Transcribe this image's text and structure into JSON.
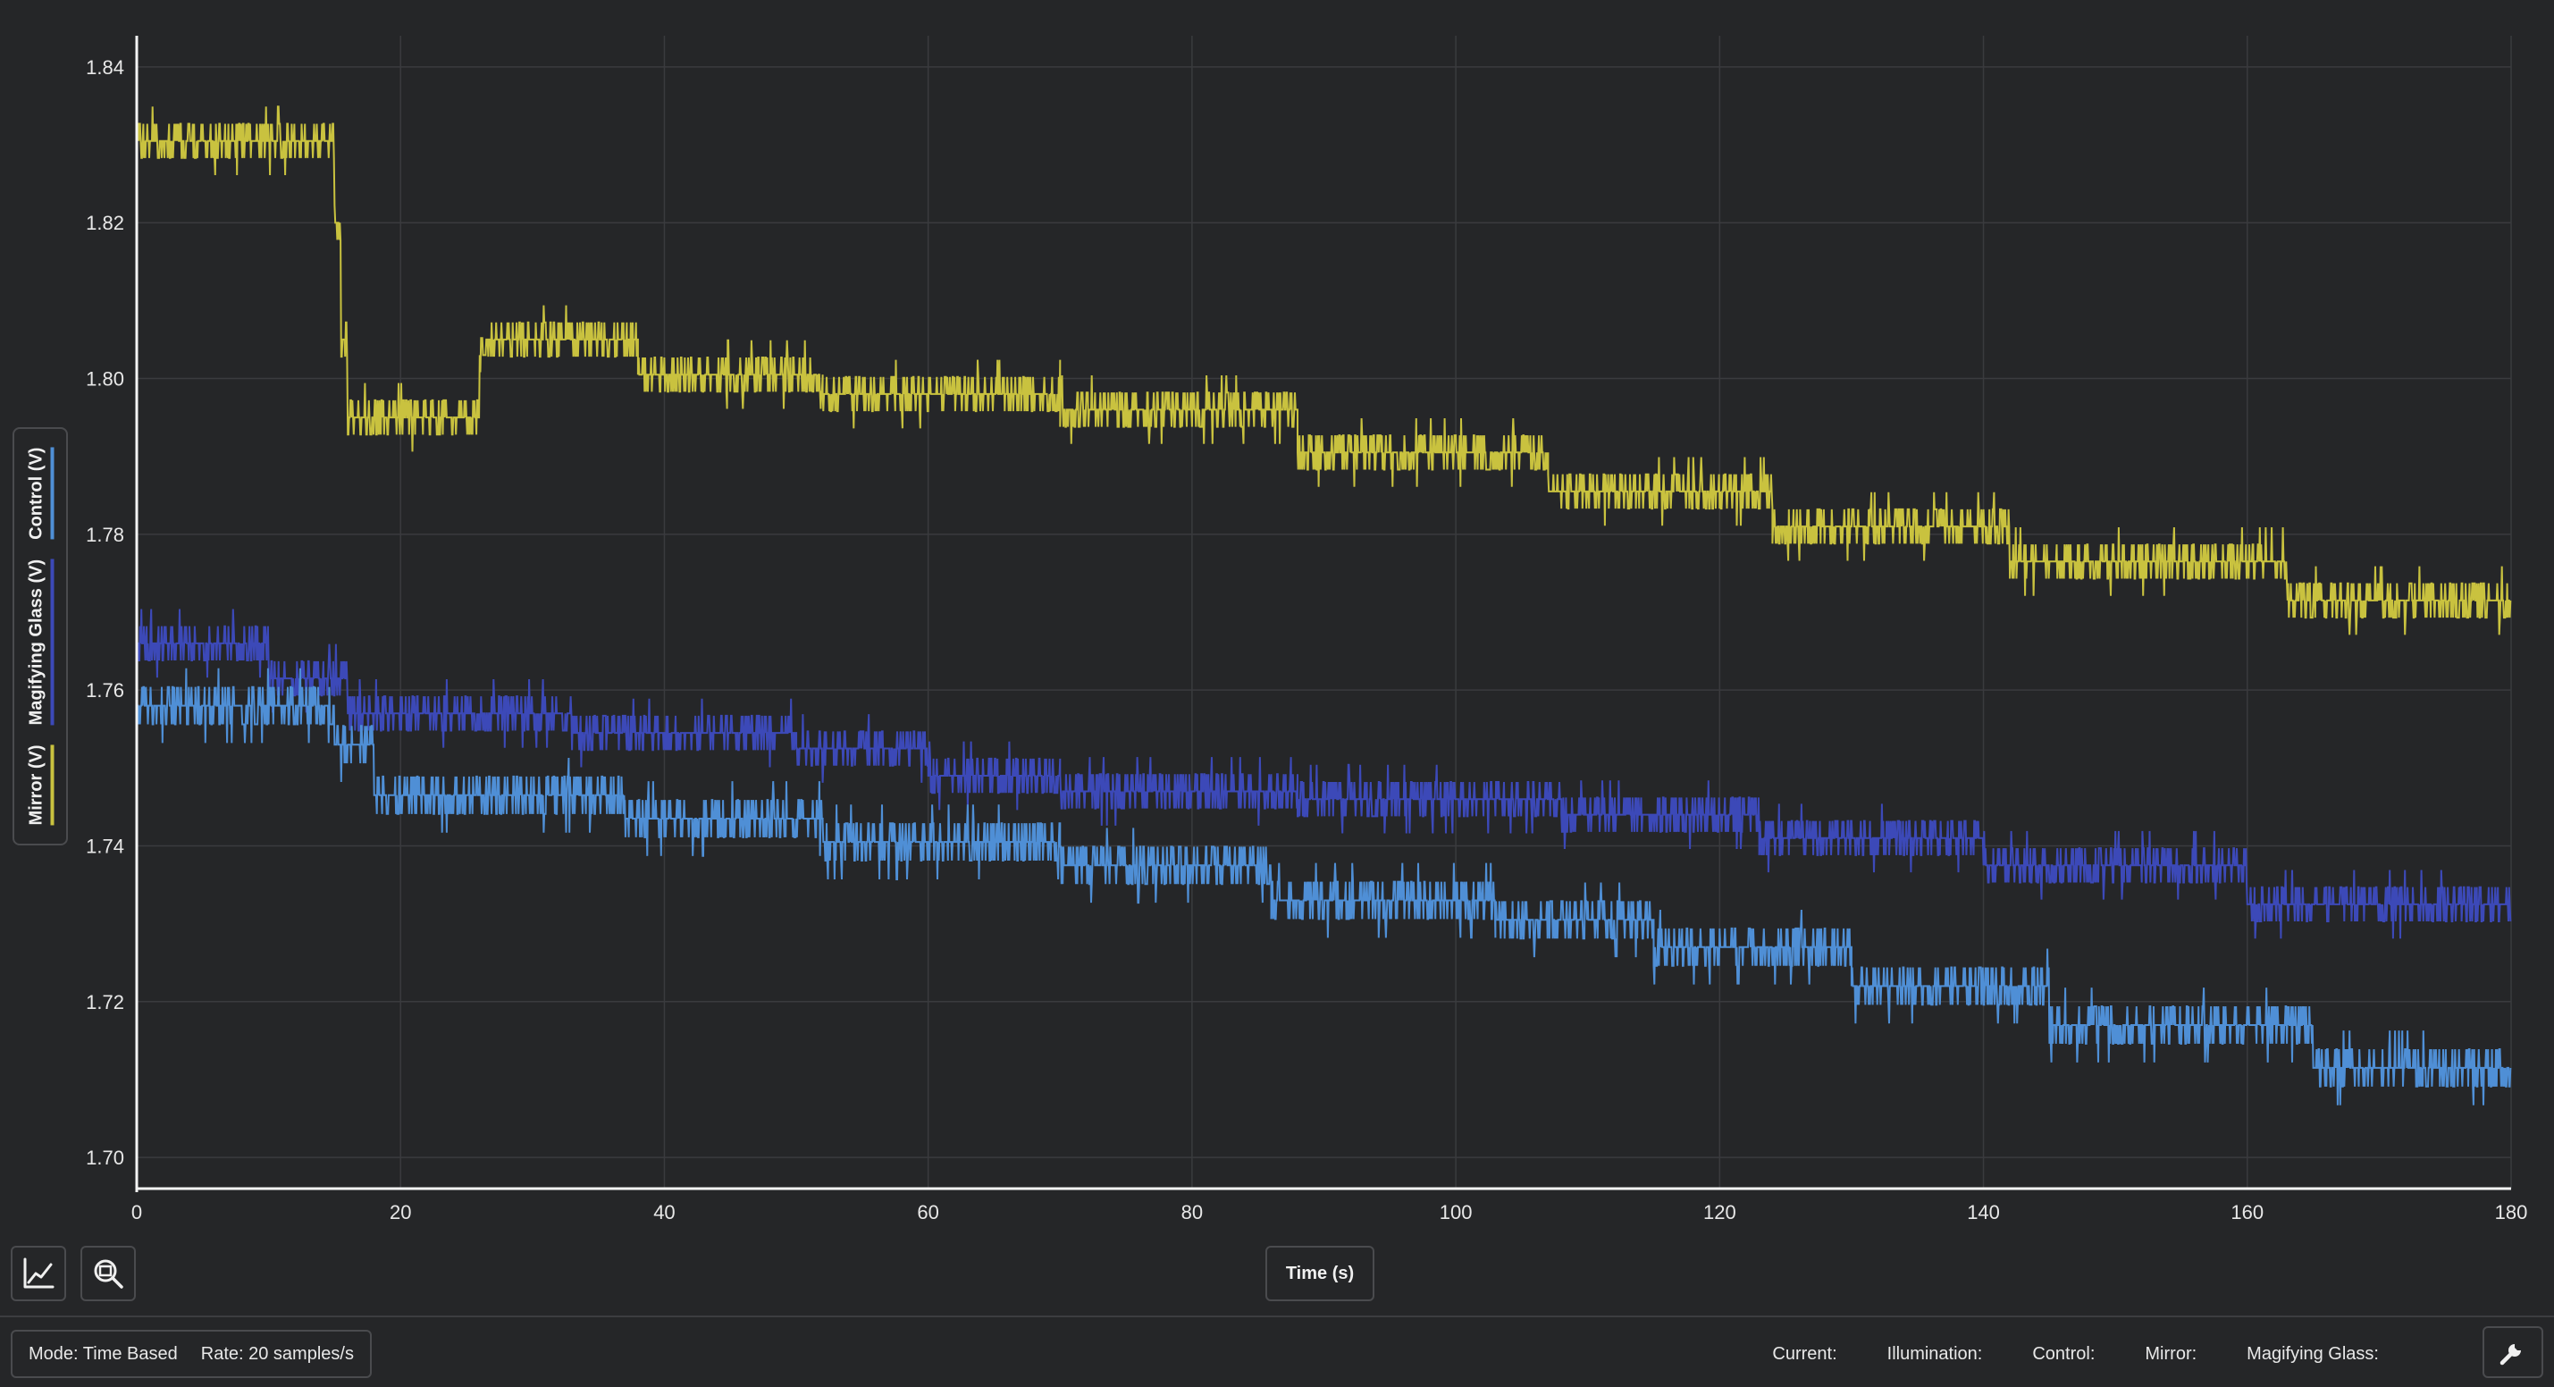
{
  "chart_data": {
    "type": "line",
    "xlabel": "Time (s)",
    "ylabel_entries": [
      "Mirror (V)",
      "Magifying Glass (V)",
      "Control (V)"
    ],
    "xlim": [
      0,
      180
    ],
    "ylim": [
      1.696,
      1.844
    ],
    "x_ticks": [
      0,
      20,
      40,
      60,
      80,
      100,
      120,
      140,
      160,
      180
    ],
    "x_tick_labels": [
      "0",
      "20",
      "40",
      "60",
      "80",
      "100",
      "120",
      "140",
      "160",
      "180"
    ],
    "y_ticks": [
      1.7,
      1.72,
      1.74,
      1.76,
      1.78,
      1.8,
      1.82,
      1.84
    ],
    "y_tick_labels": [
      "1.70",
      "1.72",
      "1.74",
      "1.76",
      "1.78",
      "1.80",
      "1.82",
      "1.84"
    ],
    "grid": true,
    "sample_rate": 20,
    "series": [
      {
        "name": "Mirror (V)",
        "color": "#c9c23f",
        "levels": [
          [
            0,
            15,
            1.8305
          ],
          [
            15,
            15.5,
            1.82
          ],
          [
            15.5,
            16,
            1.805
          ],
          [
            16,
            26,
            1.795
          ],
          [
            26,
            26.5,
            1.803
          ],
          [
            26.5,
            38,
            1.805
          ],
          [
            38,
            52,
            1.8005
          ],
          [
            52,
            70,
            1.798
          ],
          [
            70,
            88,
            1.796
          ],
          [
            88,
            107,
            1.7905
          ],
          [
            107,
            124,
            1.7855
          ],
          [
            124,
            142,
            1.781
          ],
          [
            142,
            163,
            1.7765
          ],
          [
            163,
            180,
            1.7715
          ]
        ],
        "noise": 0.0022
      },
      {
        "name": "Magifying Glass (V)",
        "color": "#3c49b8",
        "levels": [
          [
            0,
            10,
            1.766
          ],
          [
            10,
            16,
            1.7615
          ],
          [
            16,
            33,
            1.757
          ],
          [
            33,
            50,
            1.7545
          ],
          [
            50,
            60,
            1.7525
          ],
          [
            60,
            70,
            1.749
          ],
          [
            70,
            88,
            1.747
          ],
          [
            88,
            108,
            1.746
          ],
          [
            108,
            123,
            1.744
          ],
          [
            123,
            140,
            1.741
          ],
          [
            140,
            160,
            1.7375
          ],
          [
            160,
            180,
            1.7325
          ]
        ],
        "noise": 0.0022
      },
      {
        "name": "Control (V)",
        "color": "#4f8fd6",
        "levels": [
          [
            0,
            15,
            1.758
          ],
          [
            15,
            18,
            1.753
          ],
          [
            18,
            37,
            1.7465
          ],
          [
            37,
            52,
            1.7435
          ],
          [
            52,
            70,
            1.7405
          ],
          [
            70,
            86,
            1.7375
          ],
          [
            86,
            103,
            1.733
          ],
          [
            103,
            115,
            1.7305
          ],
          [
            115,
            130,
            1.727
          ],
          [
            130,
            145,
            1.722
          ],
          [
            145,
            165,
            1.717
          ],
          [
            165,
            180,
            1.7115
          ]
        ],
        "noise": 0.0024
      }
    ]
  },
  "toolbar": {
    "chart_icon": "chart-axes-icon",
    "zoom_icon": "zoom-out-icon"
  },
  "status": {
    "mode": "Mode: Time Based",
    "rate": "Rate: 20 samples/s",
    "current": "Current:",
    "illumination": "Illumination:",
    "control": "Control:",
    "mirror": "Mirror:",
    "magifying_glass": "Magifying Glass:",
    "settings_icon": "wrench-icon"
  }
}
